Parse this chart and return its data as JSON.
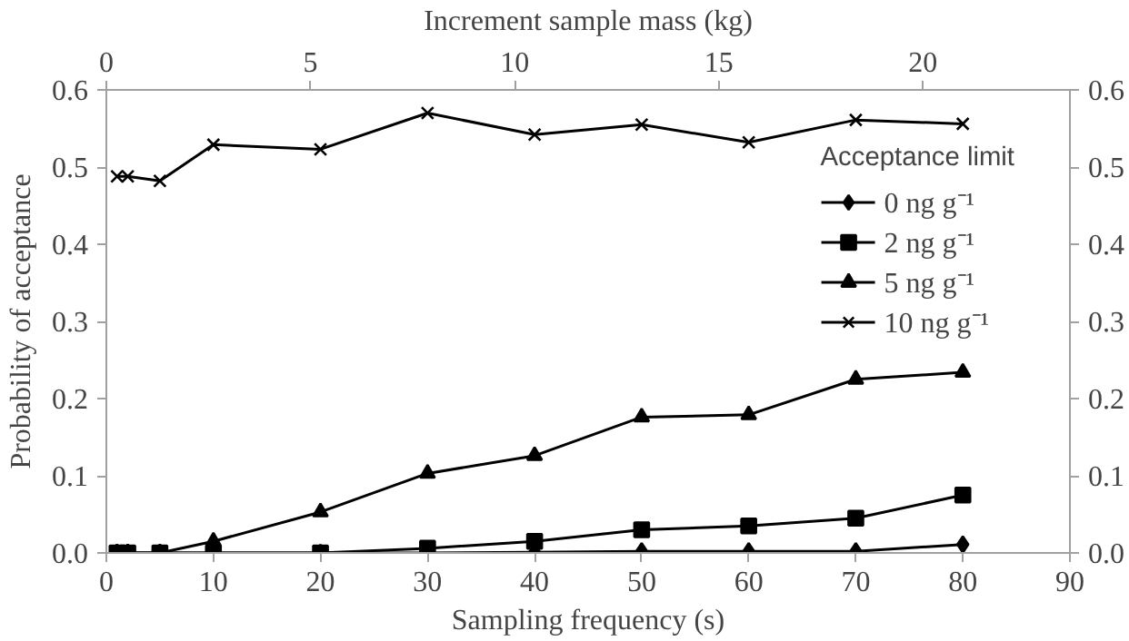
{
  "chart_data": {
    "type": "line",
    "xlabel": "Sampling frequency (s)",
    "ylabel": "Probability of acceptance",
    "x2label": "Increment sample mass (kg)",
    "legend_title": "Acceptance limit",
    "x": [
      1,
      2,
      5,
      10,
      20,
      30,
      40,
      50,
      60,
      70,
      80
    ],
    "xlim": [
      0,
      90
    ],
    "xticks": [
      0,
      10,
      20,
      30,
      40,
      50,
      60,
      70,
      80,
      90
    ],
    "x2lim": [
      0,
      23.6
    ],
    "x2ticks": [
      0,
      5,
      10,
      15,
      20
    ],
    "ylim": [
      0,
      0.6
    ],
    "yticks": [
      {
        "value": 0,
        "label": "0.0"
      },
      {
        "value": 0.1,
        "label": "0.1"
      },
      {
        "value": 0.2,
        "label": "0.2"
      },
      {
        "value": 0.3,
        "label": "0.3"
      },
      {
        "value": 0.4,
        "label": "0.4"
      },
      {
        "value": 0.5,
        "label": "0.5"
      },
      {
        "value": 0.6,
        "label": "0.6"
      }
    ],
    "y2lim": [
      0,
      0.6
    ],
    "y2ticks": [
      {
        "value": 0,
        "label": "0.0"
      },
      {
        "value": 0.1,
        "label": "0.1"
      },
      {
        "value": 0.2,
        "label": "0.2"
      },
      {
        "value": 0.3,
        "label": "0.3"
      },
      {
        "value": 0.4,
        "label": "0.4"
      },
      {
        "value": 0.5,
        "label": "0.5"
      },
      {
        "value": 0.6,
        "label": "0.6"
      }
    ],
    "grid": false,
    "legend": "top right",
    "line_style": "solid",
    "series": [
      {
        "name": "0 ng g⁻¹",
        "color": "#000000",
        "marker": "diamond",
        "values": [
          0,
          0,
          0,
          0,
          0,
          0,
          0.001,
          0.002,
          0.002,
          0.002,
          0.011
        ]
      },
      {
        "name": "2 ng g⁻¹",
        "color": "#000000",
        "marker": "square",
        "values": [
          0,
          0,
          0,
          0,
          0,
          0.006,
          0.015,
          0.03,
          0.035,
          0.045,
          0.075
        ]
      },
      {
        "name": "5 ng g⁻¹",
        "color": "#000000",
        "marker": "triangle",
        "values": [
          0,
          0,
          0,
          0.015,
          0.053,
          0.103,
          0.126,
          0.176,
          0.179,
          0.225,
          0.234
        ]
      },
      {
        "name": "10 ng g⁻¹",
        "color": "#000000",
        "marker": "cross",
        "values": [
          0.488,
          0.488,
          0.482,
          0.529,
          0.523,
          0.57,
          0.542,
          0.555,
          0.532,
          0.561,
          0.556
        ]
      }
    ]
  }
}
